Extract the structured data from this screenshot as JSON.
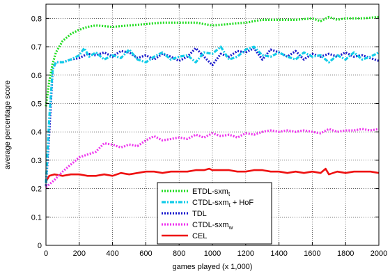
{
  "chart_data": {
    "type": "line",
    "xlabel": "games played (x 1,000)",
    "ylabel": "average percentage score",
    "xlim": [
      0,
      2000
    ],
    "ylim": [
      0,
      0.85
    ],
    "xticks": [
      "0",
      "200",
      "400",
      "600",
      "800",
      "1000",
      "1200",
      "1400",
      "1600",
      "1800",
      "2000"
    ],
    "yticks": [
      "0",
      "0.1",
      "0.2",
      "0.3",
      "0.4",
      "0.5",
      "0.6",
      "0.7",
      "0.8"
    ],
    "grid": true,
    "legend_position": "bottom-center",
    "series": [
      {
        "name": "ETDL-sxm",
        "name_sub": "t",
        "name_suffix": "",
        "color": "#22dd22",
        "style": "dotted",
        "x": [
          0,
          20,
          40,
          60,
          80,
          100,
          150,
          200,
          250,
          300,
          400,
          500,
          600,
          700,
          800,
          900,
          1000,
          1100,
          1200,
          1300,
          1400,
          1500,
          1600,
          1650,
          1700,
          1750,
          1800,
          1900,
          2000
        ],
        "y": [
          0.49,
          0.58,
          0.64,
          0.68,
          0.7,
          0.72,
          0.745,
          0.76,
          0.77,
          0.775,
          0.77,
          0.775,
          0.78,
          0.785,
          0.785,
          0.785,
          0.775,
          0.78,
          0.785,
          0.795,
          0.795,
          0.795,
          0.8,
          0.79,
          0.805,
          0.795,
          0.8,
          0.8,
          0.805
        ]
      },
      {
        "name": "CTDL-sxm",
        "name_sub": "t",
        "name_suffix": " + HoF",
        "color": "#11cce8",
        "style": "dashdot",
        "x": [
          0,
          20,
          40,
          60,
          100,
          150,
          200,
          230,
          260,
          300,
          350,
          400,
          450,
          500,
          550,
          600,
          650,
          700,
          750,
          800,
          850,
          900,
          950,
          1000,
          1050,
          1100,
          1150,
          1200,
          1250,
          1300,
          1350,
          1400,
          1450,
          1500,
          1550,
          1600,
          1650,
          1700,
          1750,
          1800,
          1850,
          1900,
          1950,
          2000
        ],
        "y": [
          0.22,
          0.45,
          0.62,
          0.645,
          0.645,
          0.655,
          0.67,
          0.695,
          0.665,
          0.68,
          0.655,
          0.67,
          0.66,
          0.69,
          0.655,
          0.645,
          0.665,
          0.68,
          0.655,
          0.665,
          0.67,
          0.645,
          0.68,
          0.675,
          0.7,
          0.655,
          0.665,
          0.69,
          0.7,
          0.67,
          0.665,
          0.68,
          0.665,
          0.655,
          0.68,
          0.665,
          0.67,
          0.645,
          0.67,
          0.655,
          0.68,
          0.655,
          0.665,
          0.68
        ]
      },
      {
        "name": "TDL",
        "name_sub": "",
        "name_suffix": "",
        "color": "#1a1acc",
        "style": "dotted",
        "x": [
          0,
          20,
          40,
          60,
          100,
          150,
          200,
          250,
          300,
          350,
          400,
          450,
          500,
          550,
          600,
          650,
          700,
          750,
          800,
          850,
          900,
          950,
          1000,
          1050,
          1100,
          1150,
          1200,
          1250,
          1300,
          1350,
          1400,
          1450,
          1500,
          1550,
          1600,
          1650,
          1700,
          1750,
          1800,
          1850,
          1900,
          1950,
          2000
        ],
        "y": [
          0.21,
          0.4,
          0.62,
          0.645,
          0.645,
          0.655,
          0.66,
          0.675,
          0.67,
          0.68,
          0.665,
          0.685,
          0.68,
          0.66,
          0.67,
          0.655,
          0.675,
          0.665,
          0.65,
          0.665,
          0.695,
          0.665,
          0.635,
          0.675,
          0.665,
          0.685,
          0.68,
          0.695,
          0.655,
          0.69,
          0.68,
          0.665,
          0.685,
          0.655,
          0.675,
          0.665,
          0.675,
          0.665,
          0.68,
          0.665,
          0.67,
          0.66,
          0.65
        ]
      },
      {
        "name": "CTDL-sxm",
        "name_sub": "w",
        "name_suffix": "",
        "color": "#ee33ee",
        "style": "dotted",
        "x": [
          0,
          50,
          100,
          150,
          200,
          250,
          300,
          350,
          400,
          450,
          500,
          550,
          600,
          650,
          700,
          750,
          800,
          850,
          900,
          950,
          1000,
          1050,
          1100,
          1150,
          1200,
          1250,
          1300,
          1350,
          1400,
          1450,
          1500,
          1550,
          1600,
          1650,
          1700,
          1750,
          1800,
          1850,
          1900,
          1950,
          2000
        ],
        "y": [
          0.205,
          0.23,
          0.26,
          0.285,
          0.31,
          0.32,
          0.33,
          0.36,
          0.355,
          0.345,
          0.355,
          0.35,
          0.37,
          0.385,
          0.37,
          0.375,
          0.38,
          0.375,
          0.39,
          0.38,
          0.395,
          0.385,
          0.39,
          0.38,
          0.395,
          0.39,
          0.4,
          0.405,
          0.4,
          0.405,
          0.4,
          0.405,
          0.4,
          0.395,
          0.41,
          0.4,
          0.405,
          0.405,
          0.41,
          0.405,
          0.41
        ]
      },
      {
        "name": "CEL",
        "name_sub": "",
        "name_suffix": "",
        "color": "#ee1111",
        "style": "solid",
        "x": [
          0,
          20,
          50,
          100,
          150,
          200,
          250,
          300,
          350,
          400,
          450,
          500,
          550,
          600,
          650,
          700,
          750,
          800,
          850,
          900,
          950,
          980,
          1000,
          1050,
          1100,
          1150,
          1200,
          1250,
          1300,
          1350,
          1400,
          1450,
          1500,
          1550,
          1600,
          1650,
          1680,
          1700,
          1750,
          1800,
          1850,
          1900,
          1950,
          2000
        ],
        "y": [
          0.225,
          0.245,
          0.25,
          0.245,
          0.25,
          0.25,
          0.245,
          0.245,
          0.25,
          0.245,
          0.255,
          0.25,
          0.255,
          0.26,
          0.26,
          0.255,
          0.26,
          0.26,
          0.26,
          0.265,
          0.265,
          0.27,
          0.265,
          0.265,
          0.265,
          0.26,
          0.26,
          0.265,
          0.265,
          0.26,
          0.26,
          0.255,
          0.26,
          0.255,
          0.26,
          0.255,
          0.27,
          0.25,
          0.26,
          0.255,
          0.26,
          0.26,
          0.26,
          0.255
        ]
      }
    ]
  }
}
